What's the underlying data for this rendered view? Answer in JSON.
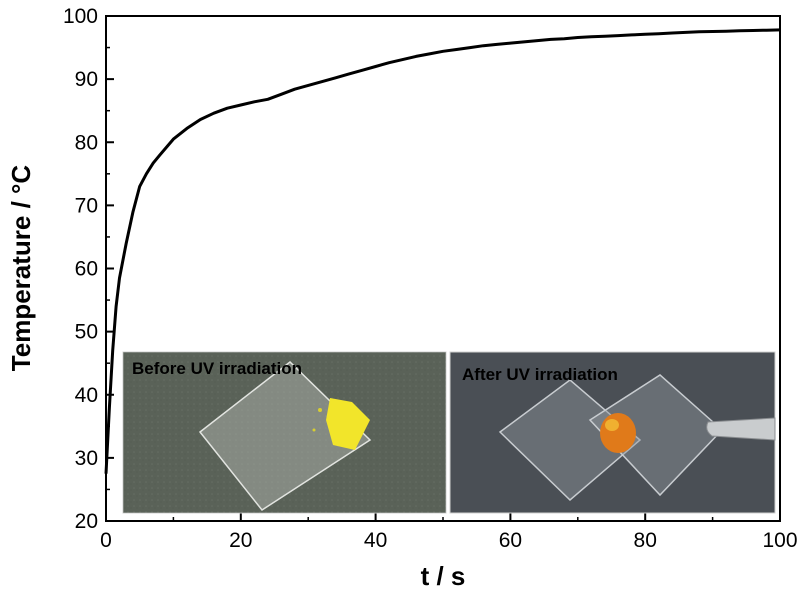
{
  "chart_data": {
    "type": "line",
    "xlabel": "t / s",
    "ylabel": "Temperature / °C",
    "xlim": [
      0,
      100
    ],
    "ylim": [
      20,
      100
    ],
    "xticks": [
      0,
      20,
      40,
      60,
      80,
      100
    ],
    "yticks": [
      20,
      30,
      40,
      50,
      60,
      70,
      80,
      90,
      100
    ],
    "grid": false,
    "series": [
      {
        "color": "#000000",
        "x": [
          0,
          0.5,
          1,
          1.5,
          2,
          3,
          4,
          5,
          6,
          7,
          8,
          10,
          12,
          14,
          16,
          18,
          20,
          22,
          24,
          26,
          28,
          30,
          32,
          34,
          36,
          38,
          40,
          42,
          44,
          46,
          48,
          50,
          52,
          54,
          56,
          58,
          60,
          62,
          64,
          66,
          68,
          70,
          72,
          74,
          76,
          78,
          80,
          82,
          84,
          86,
          88,
          90,
          92,
          94,
          96,
          98,
          100
        ],
        "y": [
          27.5,
          38,
          47,
          54,
          58.5,
          64,
          69,
          73,
          75,
          76.7,
          78,
          80.5,
          82.2,
          83.6,
          84.6,
          85.4,
          85.9,
          86.4,
          86.8,
          87.6,
          88.4,
          89,
          89.6,
          90.2,
          90.8,
          91.4,
          92,
          92.6,
          93.1,
          93.6,
          94,
          94.4,
          94.7,
          95,
          95.3,
          95.5,
          95.7,
          95.9,
          96.1,
          96.3,
          96.4,
          96.6,
          96.7,
          96.8,
          96.9,
          97,
          97.1,
          97.2,
          97.3,
          97.4,
          97.5,
          97.55,
          97.6,
          97.65,
          97.7,
          97.75,
          97.8
        ]
      }
    ],
    "insets": [
      {
        "label": "Before UV irradiation"
      },
      {
        "label": "After UV irradiation"
      }
    ]
  }
}
